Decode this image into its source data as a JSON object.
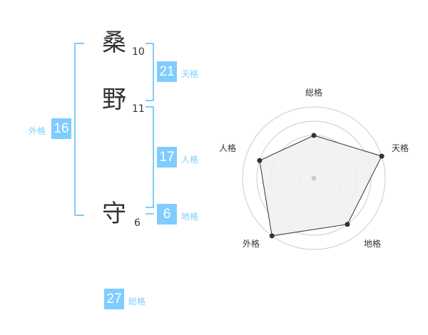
{
  "name": {
    "characters": [
      {
        "char": "桑",
        "strokes": "10"
      },
      {
        "char": "野",
        "strokes": "11"
      },
      {
        "char": "守",
        "strokes": "6"
      }
    ]
  },
  "grades": {
    "tenkaku": {
      "label": "天格",
      "value": "21"
    },
    "jinkaku": {
      "label": "人格",
      "value": "17"
    },
    "chikaku": {
      "label": "地格",
      "value": "6"
    },
    "gaikaku": {
      "label": "外格",
      "value": "16"
    },
    "soukaku": {
      "label": "総格",
      "value": "27"
    }
  },
  "colors": {
    "accent": "#80ccff",
    "text": "#333333",
    "radar_fill": "#f0f0f0"
  },
  "chart_data": {
    "type": "radar",
    "axes": [
      "総格",
      "天格",
      "地格",
      "外格",
      "人格"
    ],
    "values": [
      3,
      5,
      4,
      5,
      4
    ],
    "range": [
      0,
      5
    ],
    "rings": 5
  }
}
